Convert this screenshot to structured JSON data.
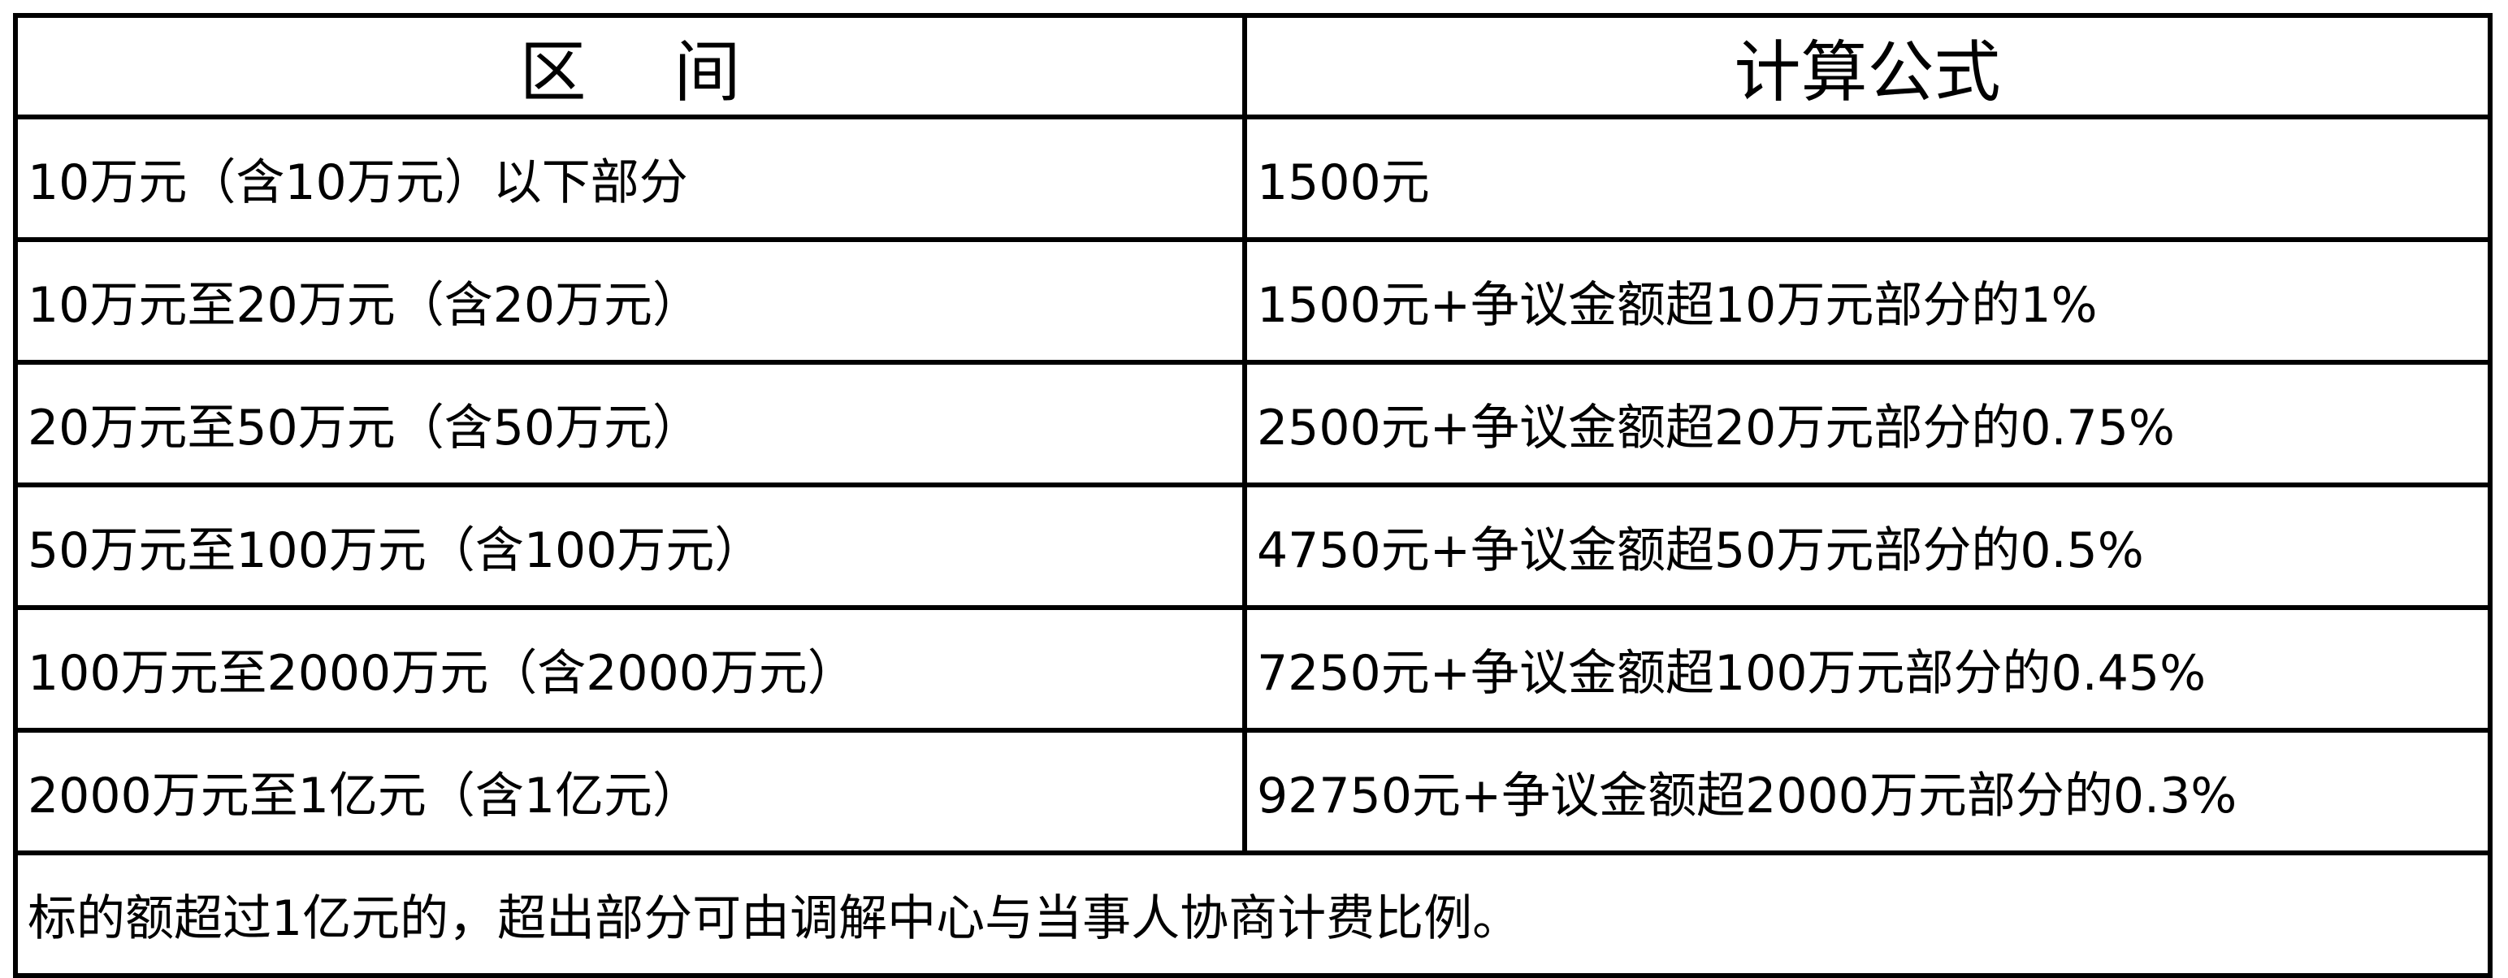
{
  "header": {
    "range": "区　 间",
    "formula": "计算公式"
  },
  "rows": [
    {
      "range": "10万元（含10万元）以下部分",
      "formula": "1500元"
    },
    {
      "range": "10万元至20万元（含20万元）",
      "formula": "1500元+争议金额超10万元部分的1%"
    },
    {
      "range": "20万元至50万元（含50万元）",
      "formula": "2500元+争议金额超20万元部分的0.75%"
    },
    {
      "range": "50万元至100万元（含100万元）",
      "formula": "4750元+争议金额超50万元部分的0.5%"
    },
    {
      "range": "100万元至2000万元（含2000万元）",
      "formula": "7250元+争议金额超100万元部分的0.45%"
    },
    {
      "range": "2000万元至1亿元（含1亿元）",
      "formula": "92750元+争议金额超2000万元部分的0.3%"
    }
  ],
  "footer_note": "标的额超过1亿元的，超出部分可由调解中心与当事人协商计费比例。"
}
